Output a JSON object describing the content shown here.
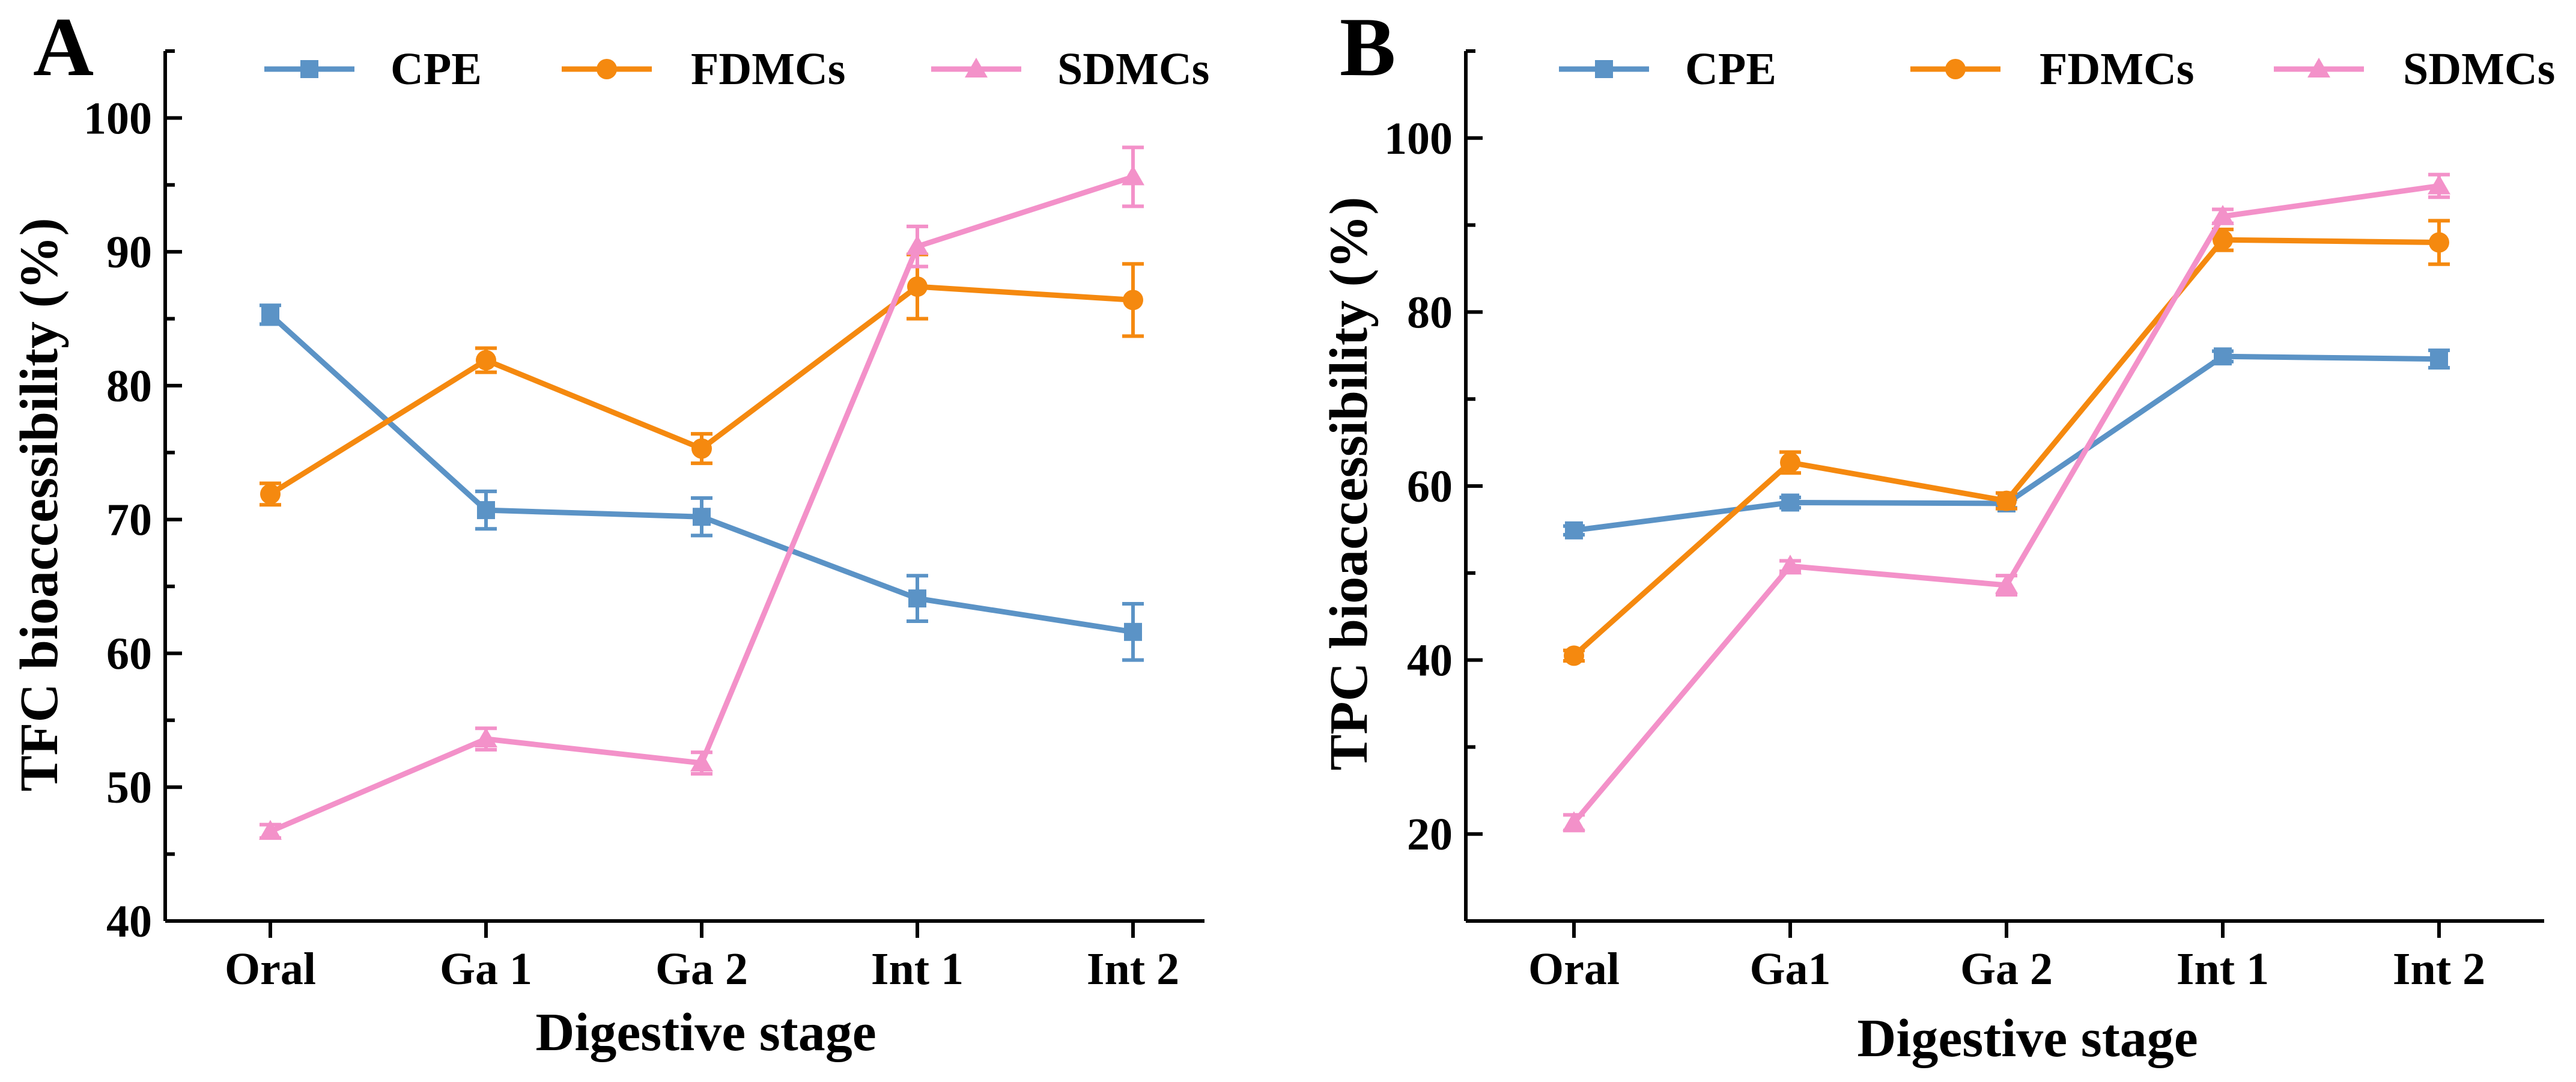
{
  "colors": {
    "CPE": "#5b93c6",
    "FDMCs": "#f5890f",
    "SDMCs": "#f391c9",
    "panel_letter": "#e01010"
  },
  "chart_data": [
    {
      "panel_label": "A",
      "type": "line",
      "xlabel": "Digestive stage",
      "ylabel": "TFC bioaccessibility (%)",
      "categories": [
        "Oral",
        "Ga 1",
        "Ga 2",
        "Int 1",
        "Int 2"
      ],
      "ylim": [
        40,
        105
      ],
      "yticks": [
        40,
        50,
        60,
        70,
        80,
        90,
        100
      ],
      "ytick_labels": [
        "40",
        "50",
        "60",
        "70",
        "80",
        "90",
        "100"
      ],
      "legend_position": "top",
      "series": [
        {
          "name": "CPE",
          "marker": "square",
          "values": [
            85.3,
            70.7,
            70.2,
            64.1,
            61.6
          ],
          "errors": [
            0.7,
            1.4,
            1.4,
            1.7,
            2.1
          ]
        },
        {
          "name": "FDMCs",
          "marker": "circle",
          "values": [
            71.9,
            81.9,
            75.3,
            87.4,
            86.4
          ],
          "errors": [
            0.8,
            0.9,
            1.1,
            2.4,
            2.7
          ]
        },
        {
          "name": "SDMCs",
          "marker": "triangle",
          "values": [
            46.7,
            53.6,
            51.8,
            90.4,
            95.6
          ],
          "errors": [
            0.5,
            0.8,
            0.8,
            1.5,
            2.2
          ]
        }
      ]
    },
    {
      "panel_label": "B",
      "type": "line",
      "xlabel": "Digestive stage",
      "ylabel": "TPC bioaccessibility (%)",
      "categories": [
        "Oral",
        "Ga1",
        "Ga 2",
        "Int 1",
        "Int 2"
      ],
      "ylim": [
        10,
        110
      ],
      "yticks": [
        20,
        40,
        60,
        80,
        100
      ],
      "ytick_labels": [
        "20",
        "40",
        "60",
        "80",
        "100"
      ],
      "yminor": [
        10,
        30,
        50,
        70,
        90,
        110
      ],
      "legend_position": "top",
      "series": [
        {
          "name": "CPE",
          "marker": "square",
          "values": [
            54.9,
            58.1,
            58.0,
            74.9,
            74.6
          ],
          "errors": [
            0.5,
            0.6,
            0.5,
            0.6,
            1.0
          ]
        },
        {
          "name": "FDMCs",
          "marker": "circle",
          "values": [
            40.5,
            62.7,
            58.3,
            88.3,
            88.0
          ],
          "errors": [
            0.6,
            1.2,
            0.9,
            1.2,
            2.5
          ]
        },
        {
          "name": "SDMCs",
          "marker": "triangle",
          "values": [
            21.3,
            50.8,
            48.6,
            91.0,
            94.5
          ],
          "errors": [
            0.9,
            0.6,
            1.1,
            0.8,
            1.3
          ]
        }
      ]
    }
  ]
}
